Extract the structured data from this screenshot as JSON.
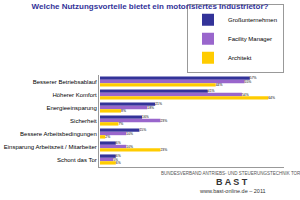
{
  "chart_data": {
    "type": "bar",
    "orientation": "horizontal",
    "title": "Welche Nutzungsvorteile bietet ein motorisiertes Industrietor?",
    "categories": [
      "Besserer Betriebsablauf",
      "Höherer Komfort",
      "Energieeinsparung",
      "Sicherheit",
      "Bessere Arbeitsbedingungen",
      "Einsparung Arbeitszeit / Mitarbeiter",
      "Schont das Tor"
    ],
    "series": [
      {
        "name": "Großunternehmen",
        "color": "#333399",
        "values": [
          57,
          41,
          21,
          16,
          15,
          6,
          6
        ],
        "value_labels": [
          "57%",
          "41%",
          "21%",
          "16%",
          "15%",
          "6%",
          "6%"
        ]
      },
      {
        "name": "Facility Manager",
        "color": "#9966cc",
        "values": [
          55,
          54,
          18,
          23,
          10,
          10,
          5
        ],
        "value_labels": [
          "55%",
          "54%",
          "18%",
          "23%",
          "10%",
          "10%",
          "5%"
        ]
      },
      {
        "name": "Architekt",
        "color": "#ffcc00",
        "values": [
          44,
          64,
          8,
          7,
          2,
          23,
          6
        ],
        "value_labels": [
          "44%",
          "64%",
          "8%",
          "7%",
          "2%",
          "23%",
          "6%"
        ]
      }
    ],
    "xlim": [
      0,
      70
    ],
    "data_labels": true,
    "tick_labels": "y",
    "grid": false,
    "legend": "top-right",
    "annotations": [
      "BUNDESVERBAND ANTRIEBS- UND STEUERUNGSTECHNIK TORE",
      "B A S T",
      "www.bast-online.de – 2011"
    ]
  }
}
